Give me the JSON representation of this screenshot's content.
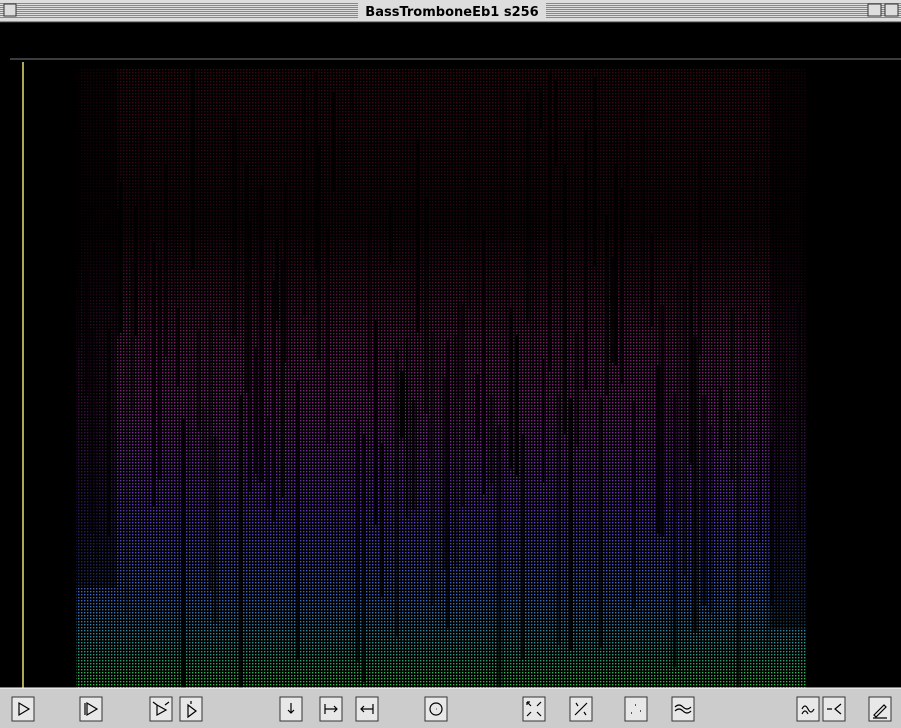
{
  "window": {
    "title": "BassTromboneEb1 s256"
  }
}
